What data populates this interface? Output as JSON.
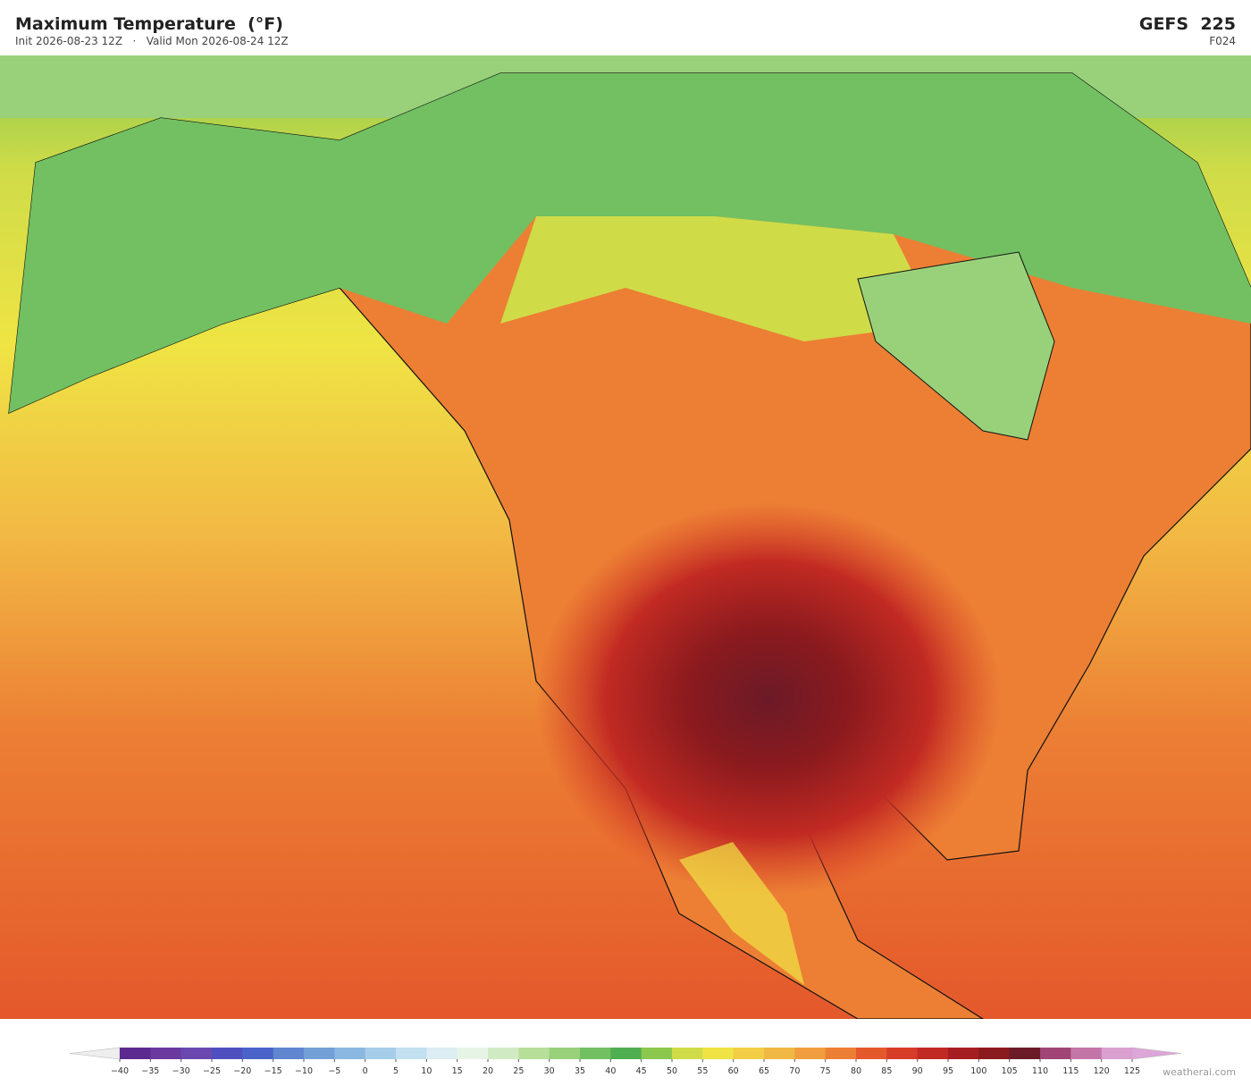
{
  "header": {
    "title": "Maximum Temperature  (°F)",
    "subtitle": "Init 2026-08-23 12Z   ·   Valid Mon 2026-08-24 12Z",
    "model": "GEFS  225",
    "forecast_hour": "F024"
  },
  "colorbar": {
    "labels": [
      "−40",
      "−35",
      "−30",
      "−25",
      "−20",
      "−15",
      "−10",
      "−5",
      "0",
      "5",
      "10",
      "15",
      "20",
      "25",
      "30",
      "35",
      "40",
      "45",
      "50",
      "55",
      "60",
      "65",
      "70",
      "75",
      "80",
      "85",
      "90",
      "95",
      "100",
      "105",
      "110",
      "115",
      "120",
      "125"
    ],
    "colors": [
      "#5b2a8e",
      "#6a3a9f",
      "#6b48b0",
      "#4f4fbf",
      "#4a63c8",
      "#5f86cf",
      "#74a0d8",
      "#8bb8e0",
      "#a5cde9",
      "#c2e0ef",
      "#dcedf3",
      "#e6f4e6",
      "#d0ebc4",
      "#b8df9a",
      "#98d17a",
      "#72c062",
      "#4fae4f",
      "#8cc84e",
      "#cfdc48",
      "#efe444",
      "#f3cd45",
      "#f2b844",
      "#f09d3d",
      "#ec7f34",
      "#e4582b",
      "#d63c27",
      "#c12a23",
      "#a61e21",
      "#8b1a1e",
      "#6b1a28",
      "#a04575",
      "#c475a8",
      "#d9a0cf"
    ],
    "extend_low_color": "#eeeeee",
    "extend_high_color": "#dda6d8"
  },
  "footer": {
    "credit": "weatherai.com"
  }
}
